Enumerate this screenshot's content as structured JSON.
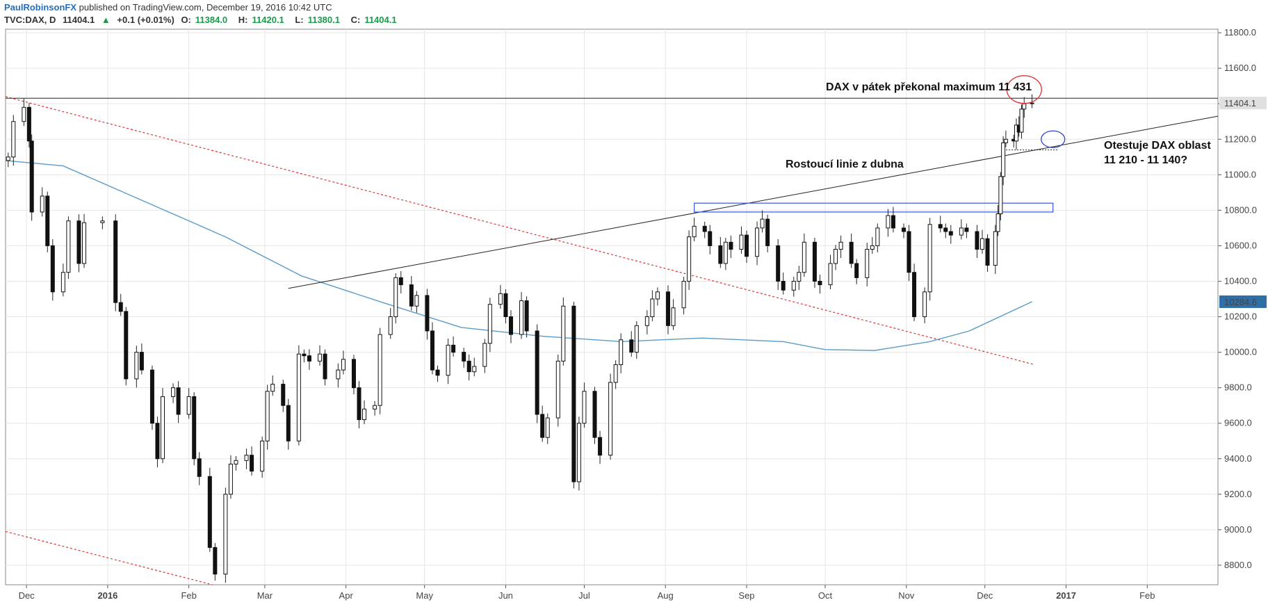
{
  "header": {
    "author": "PaulRobinsonFX",
    "published": "published on TradingView.com, December 19, 2016 10:42 UTC",
    "symbol": "TVC:DAX, D",
    "last": "11404.1",
    "up_arrow": "▲",
    "change": "+0.1 (+0.01%)",
    "open_label": "O:",
    "open": "11384.0",
    "high_label": "H:",
    "high": "11420.1",
    "low_label": "L:",
    "low": "11380.1",
    "close_label": "C:",
    "close": "11404.1"
  },
  "colors": {
    "grid": "#e6e6e6",
    "axis": "#555555",
    "ma": "#5a9bc7",
    "downtrend": "#e03030",
    "rect": "#3355dd",
    "circle_red": "#e03030",
    "circle_blue": "#3344cc",
    "price_label_bg": "#e0e0e0",
    "ma_label_bg": "#2f6fa8"
  },
  "annotations": {
    "high_break": "DAX v pátek překonal maximum 11 431",
    "rising_line": "Rostoucí linie z dubna",
    "test_line1": "Otestuje DAX oblast",
    "test_line2": "11 210 - 11 140?"
  },
  "labels": {
    "last_price": "11404.1",
    "ma_value": "10284.6"
  },
  "chart_data": {
    "type": "candlestick",
    "symbol": "TVC:DAX, D",
    "x_ticks": [
      "Dec",
      "2016",
      "Feb",
      "Mar",
      "Apr",
      "May",
      "Jun",
      "Jul",
      "Aug",
      "Sep",
      "Oct",
      "Nov",
      "Dec",
      "2017",
      "Feb"
    ],
    "x_tick_dates": [
      "2015-12-01",
      "2016-01-01",
      "2016-02-01",
      "2016-03-01",
      "2016-04-01",
      "2016-05-01",
      "2016-06-01",
      "2016-07-01",
      "2016-08-01",
      "2016-09-01",
      "2016-10-01",
      "2016-11-01",
      "2016-12-01",
      "2017-01-01",
      "2017-02-01"
    ],
    "y_ticks": [
      8800,
      9000,
      9200,
      9400,
      9600,
      9800,
      10000,
      10200,
      10400,
      10600,
      10800,
      11000,
      11200,
      11400,
      11600,
      11800
    ],
    "y_tick_labels": [
      "8800.0",
      "9000.0",
      "9200.0",
      "9400.0",
      "9600.0",
      "9800.0",
      "10000.0",
      "10200.0",
      "10400.0",
      "10600.0",
      "10800.0",
      "11000.0",
      "11200.0",
      "11400.0",
      "11600.0",
      "11800.0"
    ],
    "ylim": [
      8690,
      11820
    ],
    "xlim": [
      "2015-11-23",
      "2017-02-28"
    ],
    "grid": true,
    "closes": [
      [
        "2015-11-24",
        11100
      ],
      [
        "2015-11-26",
        11300
      ],
      [
        "2015-11-30",
        11380
      ],
      [
        "2015-12-02",
        11190
      ],
      [
        "2015-12-03",
        10790
      ],
      [
        "2015-12-07",
        10880
      ],
      [
        "2015-12-09",
        10600
      ],
      [
        "2015-12-11",
        10340
      ],
      [
        "2015-12-15",
        10450
      ],
      [
        "2015-12-17",
        10740
      ],
      [
        "2015-12-21",
        10500
      ],
      [
        "2015-12-23",
        10730
      ],
      [
        "2015-12-30",
        10740
      ],
      [
        "2016-01-04",
        10280
      ],
      [
        "2016-01-06",
        10230
      ],
      [
        "2016-01-08",
        9850
      ],
      [
        "2016-01-12",
        10000
      ],
      [
        "2016-01-14",
        9900
      ],
      [
        "2016-01-18",
        9600
      ],
      [
        "2016-01-20",
        9400
      ],
      [
        "2016-01-22",
        9750
      ],
      [
        "2016-01-26",
        9800
      ],
      [
        "2016-01-28",
        9650
      ],
      [
        "2016-02-01",
        9750
      ],
      [
        "2016-02-03",
        9400
      ],
      [
        "2016-02-05",
        9300
      ],
      [
        "2016-02-09",
        8900
      ],
      [
        "2016-02-11",
        8750
      ],
      [
        "2016-02-15",
        9200
      ],
      [
        "2016-02-17",
        9370
      ],
      [
        "2016-02-19",
        9390
      ],
      [
        "2016-02-23",
        9420
      ],
      [
        "2016-02-25",
        9330
      ],
      [
        "2016-02-29",
        9500
      ],
      [
        "2016-03-02",
        9780
      ],
      [
        "2016-03-04",
        9820
      ],
      [
        "2016-03-08",
        9700
      ],
      [
        "2016-03-10",
        9500
      ],
      [
        "2016-03-14",
        9990
      ],
      [
        "2016-03-16",
        9980
      ],
      [
        "2016-03-18",
        9950
      ],
      [
        "2016-03-22",
        9990
      ],
      [
        "2016-03-24",
        9850
      ],
      [
        "2016-03-29",
        9900
      ],
      [
        "2016-03-31",
        9960
      ],
      [
        "2016-04-04",
        9800
      ],
      [
        "2016-04-06",
        9620
      ],
      [
        "2016-04-08",
        9680
      ],
      [
        "2016-04-12",
        9700
      ],
      [
        "2016-04-14",
        10100
      ],
      [
        "2016-04-18",
        10200
      ],
      [
        "2016-04-20",
        10420
      ],
      [
        "2016-04-22",
        10380
      ],
      [
        "2016-04-26",
        10260
      ],
      [
        "2016-04-28",
        10320
      ],
      [
        "2016-05-02",
        10120
      ],
      [
        "2016-05-04",
        9900
      ],
      [
        "2016-05-06",
        9870
      ],
      [
        "2016-05-10",
        10040
      ],
      [
        "2016-05-12",
        10000
      ],
      [
        "2016-05-16",
        9950
      ],
      [
        "2016-05-18",
        9890
      ],
      [
        "2016-05-20",
        9920
      ],
      [
        "2016-05-24",
        10050
      ],
      [
        "2016-05-26",
        10270
      ],
      [
        "2016-05-30",
        10330
      ],
      [
        "2016-06-01",
        10200
      ],
      [
        "2016-06-03",
        10100
      ],
      [
        "2016-06-07",
        10290
      ],
      [
        "2016-06-09",
        10120
      ],
      [
        "2016-06-13",
        9650
      ],
      [
        "2016-06-15",
        9520
      ],
      [
        "2016-06-17",
        9630
      ],
      [
        "2016-06-21",
        9950
      ],
      [
        "2016-06-23",
        10260
      ],
      [
        "2016-06-27",
        9270
      ],
      [
        "2016-06-29",
        9600
      ],
      [
        "2016-07-01",
        9780
      ],
      [
        "2016-07-05",
        9520
      ],
      [
        "2016-07-07",
        9420
      ],
      [
        "2016-07-11",
        9830
      ],
      [
        "2016-07-13",
        9930
      ],
      [
        "2016-07-15",
        10070
      ],
      [
        "2016-07-19",
        10000
      ],
      [
        "2016-07-21",
        10150
      ],
      [
        "2016-07-25",
        10200
      ],
      [
        "2016-07-27",
        10300
      ],
      [
        "2016-07-29",
        10340
      ],
      [
        "2016-08-02",
        10150
      ],
      [
        "2016-08-04",
        10250
      ],
      [
        "2016-08-08",
        10400
      ],
      [
        "2016-08-10",
        10650
      ],
      [
        "2016-08-12",
        10710
      ],
      [
        "2016-08-16",
        10680
      ],
      [
        "2016-08-18",
        10600
      ],
      [
        "2016-08-22",
        10500
      ],
      [
        "2016-08-24",
        10620
      ],
      [
        "2016-08-26",
        10580
      ],
      [
        "2016-08-30",
        10660
      ],
      [
        "2016-09-01",
        10540
      ],
      [
        "2016-09-05",
        10700
      ],
      [
        "2016-09-07",
        10750
      ],
      [
        "2016-09-09",
        10600
      ],
      [
        "2016-09-13",
        10400
      ],
      [
        "2016-09-15",
        10350
      ],
      [
        "2016-09-19",
        10400
      ],
      [
        "2016-09-21",
        10450
      ],
      [
        "2016-09-23",
        10620
      ],
      [
        "2016-09-27",
        10400
      ],
      [
        "2016-09-29",
        10380
      ],
      [
        "2016-10-03",
        10500
      ],
      [
        "2016-10-05",
        10580
      ],
      [
        "2016-10-07",
        10620
      ],
      [
        "2016-10-11",
        10500
      ],
      [
        "2016-10-13",
        10420
      ],
      [
        "2016-10-17",
        10580
      ],
      [
        "2016-10-19",
        10600
      ],
      [
        "2016-10-21",
        10700
      ],
      [
        "2016-10-25",
        10770
      ],
      [
        "2016-10-27",
        10700
      ],
      [
        "2016-10-31",
        10680
      ],
      [
        "2016-11-02",
        10450
      ],
      [
        "2016-11-04",
        10200
      ],
      [
        "2016-11-08",
        10340
      ],
      [
        "2016-11-10",
        10720
      ],
      [
        "2016-11-14",
        10700
      ],
      [
        "2016-11-16",
        10680
      ],
      [
        "2016-11-18",
        10660
      ],
      [
        "2016-11-22",
        10700
      ],
      [
        "2016-11-24",
        10680
      ],
      [
        "2016-11-28",
        10580
      ],
      [
        "2016-11-30",
        10640
      ],
      [
        "2016-12-02",
        10490
      ],
      [
        "2016-12-05",
        10680
      ],
      [
        "2016-12-06",
        10780
      ],
      [
        "2016-12-07",
        10990
      ],
      [
        "2016-12-08",
        11180
      ],
      [
        "2016-12-09",
        11200
      ],
      [
        "2016-12-12",
        11190
      ],
      [
        "2016-12-13",
        11280
      ],
      [
        "2016-12-14",
        11240
      ],
      [
        "2016-12-15",
        11370
      ],
      [
        "2016-12-16",
        11400
      ],
      [
        "2016-12-19",
        11404.1
      ]
    ],
    "moving_average": [
      [
        "2015-11-23",
        11080
      ],
      [
        "2015-12-15",
        11050
      ],
      [
        "2016-01-15",
        10850
      ],
      [
        "2016-02-15",
        10650
      ],
      [
        "2016-03-15",
        10430
      ],
      [
        "2016-04-15",
        10280
      ],
      [
        "2016-05-15",
        10140
      ],
      [
        "2016-06-15",
        10090
      ],
      [
        "2016-07-15",
        10060
      ],
      [
        "2016-08-15",
        10080
      ],
      [
        "2016-09-15",
        10060
      ],
      [
        "2016-10-01",
        10015
      ],
      [
        "2016-10-20",
        10010
      ],
      [
        "2016-11-10",
        10060
      ],
      [
        "2016-11-25",
        10120
      ],
      [
        "2016-12-19",
        10284.6
      ]
    ],
    "drawings": {
      "horizontal_resistance": 11431,
      "rising_trendline": [
        [
          "2016-03-10",
          10360
        ],
        [
          "2017-02-28",
          11330
        ]
      ],
      "falling_trendline": [
        [
          "2015-11-23",
          11440
        ],
        [
          "2016-12-20",
          9930
        ]
      ],
      "lower_channel": [
        [
          "2015-11-23",
          8990
        ],
        [
          "2016-02-10",
          8690
        ]
      ],
      "resistance_zone": {
        "from": "2016-08-12",
        "to": "2016-12-27",
        "low": 10790,
        "high": 10840
      },
      "test_level": [
        [
          "2016-12-08",
          11140
        ],
        [
          "2016-12-29",
          11140
        ]
      ],
      "red_circle": [
        "2016-12-16",
        11480
      ],
      "blue_circle": [
        "2016-12-27",
        11200
      ]
    }
  }
}
